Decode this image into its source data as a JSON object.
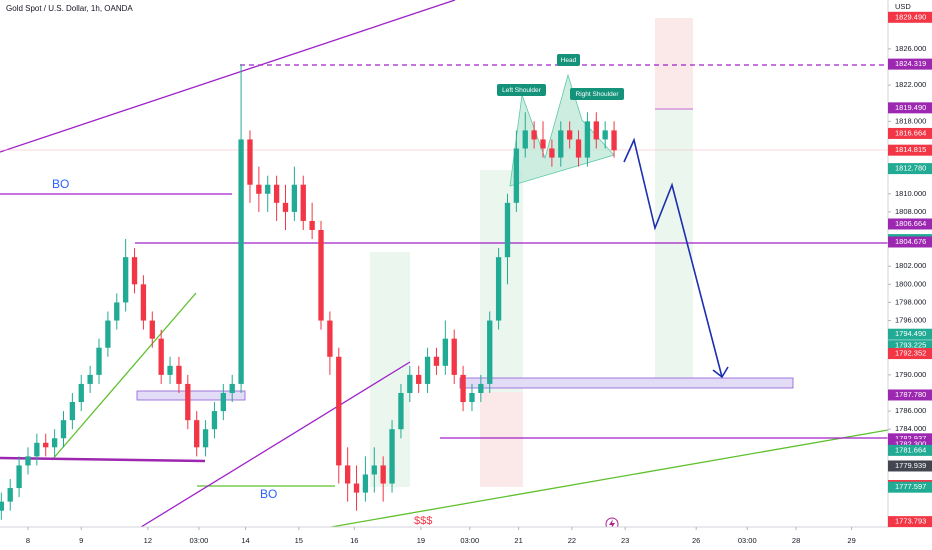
{
  "chart_data": {
    "type": "candlestick",
    "title": "Gold Spot / U.S. Dollar, 1h, OANDA",
    "currency": "USD",
    "up_color": "#22ab94",
    "down_color": "#f23645",
    "xlim": [
      -12.6,
      387.4
    ],
    "ylim": [
      1773.2,
      1831.4
    ],
    "xticks": [
      {
        "value": 0,
        "label": "8"
      },
      {
        "value": 24,
        "label": "9"
      },
      {
        "value": 54,
        "label": "12"
      },
      {
        "value": 77,
        "label": "03:00"
      },
      {
        "value": 98,
        "label": "14"
      },
      {
        "value": 122,
        "label": "15"
      },
      {
        "value": 147,
        "label": "16"
      },
      {
        "value": 177,
        "label": "19"
      },
      {
        "value": 199,
        "label": "03:00"
      },
      {
        "value": 221,
        "label": "21"
      },
      {
        "value": 245,
        "label": "22"
      },
      {
        "value": 269,
        "label": "23"
      },
      {
        "value": 301,
        "label": "26"
      },
      {
        "value": 324,
        "label": "03:00"
      },
      {
        "value": 346,
        "label": "28"
      },
      {
        "value": 371,
        "label": "29"
      }
    ],
    "yticks": [
      {
        "value": 1826,
        "label": "1826.000"
      },
      {
        "value": 1822,
        "label": "1822.000"
      },
      {
        "value": 1818,
        "label": "1818.000"
      },
      {
        "value": 1810,
        "label": "1810.000"
      },
      {
        "value": 1808,
        "label": "1808.000"
      },
      {
        "value": 1802,
        "label": "1802.000"
      },
      {
        "value": 1800,
        "label": "1800.000"
      },
      {
        "value": 1798,
        "label": "1798.000"
      },
      {
        "value": 1796,
        "label": "1796.000"
      },
      {
        "value": 1790,
        "label": "1790.000"
      },
      {
        "value": 1786,
        "label": "1786.000"
      },
      {
        "value": 1784,
        "label": "1784.000"
      }
    ],
    "x": [
      -12,
      -8,
      -4,
      0,
      4,
      8,
      12,
      16,
      20,
      24,
      28,
      32,
      36,
      40,
      44,
      48,
      52,
      56,
      60,
      64,
      68,
      72,
      76,
      80,
      84,
      88,
      92,
      96,
      100,
      104,
      108,
      112,
      116,
      120,
      124,
      128,
      132,
      136,
      140,
      144,
      148,
      152,
      156,
      160,
      164,
      168,
      172,
      176,
      180,
      184,
      188,
      192,
      196,
      200,
      204,
      208,
      212,
      216,
      220,
      224,
      228,
      232,
      236,
      240,
      244,
      248,
      252,
      256,
      260,
      264
    ],
    "open": [
      1775,
      1776,
      1777.5,
      1780,
      1781,
      1782.5,
      1782,
      1783,
      1785,
      1787,
      1789,
      1790,
      1793,
      1796,
      1798,
      1803,
      1800,
      1796,
      1794,
      1790,
      1791,
      1789,
      1785,
      1782,
      1784,
      1786,
      1788,
      1789,
      1816,
      1811,
      1810,
      1811,
      1809,
      1808,
      1811,
      1807,
      1806,
      1796,
      1792,
      1780,
      1778,
      1777,
      1779,
      1780,
      1778,
      1784,
      1788,
      1790,
      1789,
      1792,
      1791,
      1794,
      1790,
      1787,
      1788,
      1789,
      1796,
      1803,
      1809,
      1815,
      1817,
      1816,
      1815,
      1814,
      1817,
      1816,
      1814,
      1818,
      1816,
      1817
    ],
    "high": [
      1777,
      1778.5,
      1781,
      1782,
      1783.5,
      1783.5,
      1784,
      1786,
      1788,
      1790,
      1791,
      1794,
      1797,
      1799,
      1805,
      1804,
      1801,
      1797,
      1795,
      1792,
      1792,
      1790,
      1786,
      1785,
      1787,
      1789,
      1790,
      1824.319,
      1817,
      1813,
      1812,
      1812,
      1811,
      1813,
      1812,
      1809,
      1807,
      1797,
      1793,
      1782,
      1780,
      1781,
      1782,
      1781,
      1785,
      1789,
      1791,
      1791,
      1793,
      1793,
      1796,
      1795,
      1791,
      1789,
      1790,
      1797,
      1804,
      1810,
      1817,
      1819,
      1818,
      1818,
      1816,
      1818,
      1818,
      1817,
      1819,
      1819,
      1818,
      1818
    ],
    "low": [
      1774,
      1775,
      1776.5,
      1779,
      1780,
      1781,
      1781,
      1782,
      1784,
      1786,
      1788,
      1789,
      1792,
      1795,
      1797,
      1799,
      1795,
      1793,
      1789,
      1789,
      1788,
      1784,
      1781,
      1781,
      1783,
      1785,
      1787,
      1788,
      1809,
      1808,
      1808,
      1807,
      1806,
      1807,
      1806,
      1805,
      1795,
      1790,
      1778,
      1776,
      1775,
      1776,
      1777,
      1776,
      1777,
      1783,
      1787,
      1788,
      1788,
      1790,
      1790,
      1789,
      1786,
      1786,
      1787,
      1788,
      1795,
      1800,
      1808,
      1814,
      1815,
      1814,
      1813,
      1813,
      1815,
      1813,
      1813,
      1815,
      1815,
      1814
    ],
    "close": [
      1776,
      1777.5,
      1780,
      1781,
      1782.5,
      1782,
      1783,
      1785,
      1787,
      1789,
      1790,
      1793,
      1796,
      1798,
      1803,
      1800,
      1796,
      1794,
      1790,
      1791,
      1789,
      1785,
      1782,
      1784,
      1786,
      1788,
      1789,
      1816,
      1811,
      1810,
      1811,
      1809,
      1808,
      1811,
      1807,
      1806,
      1796,
      1792,
      1780,
      1778,
      1777,
      1779,
      1780,
      1778,
      1784,
      1788,
      1790,
      1789,
      1792,
      1791,
      1794,
      1790,
      1787,
      1788,
      1789,
      1796,
      1803,
      1809,
      1815,
      1817,
      1816,
      1815,
      1814,
      1817,
      1816,
      1814,
      1818,
      1816,
      1817,
      1814.8
    ],
    "price_tags": [
      {
        "value": 1829.49,
        "label": "1829.490",
        "color": "#f23645"
      },
      {
        "value": 1824.319,
        "label": "1824.319",
        "color": "#9c27b0"
      },
      {
        "value": 1819.49,
        "label": "1819.490",
        "color": "#9c27b0"
      },
      {
        "value": 1816.664,
        "label": "1816.664",
        "color": "#f23645"
      },
      {
        "value": 1814.815,
        "label": "1814.815",
        "color": "#f23645"
      },
      {
        "value": 1812.78,
        "label": "1812.780",
        "color": "#22ab94"
      },
      {
        "value": 1806.664,
        "label": "1806.664",
        "color": "#9c27b0"
      },
      {
        "value": 1804.939,
        "label": "1804.939",
        "color": "#22ab94"
      },
      {
        "value": 1804.676,
        "label": "1804.676",
        "color": "#9c27b0"
      },
      {
        "value": 1794.49,
        "label": "1794.490",
        "color": "#22ab94"
      },
      {
        "value": 1793.225,
        "label": "1793.225",
        "color": "#22ab94"
      },
      {
        "value": 1792.352,
        "label": "1792.352",
        "color": "#f23645"
      },
      {
        "value": 1787.78,
        "label": "1787.780",
        "color": "#9c27b0"
      },
      {
        "value": 1782.937,
        "label": "1782.937",
        "color": "#9c27b0"
      },
      {
        "value": 1782.3,
        "label": "1782.300",
        "color": "#9c27b0"
      },
      {
        "value": 1781.664,
        "label": "1781.664",
        "color": "#22ab94"
      },
      {
        "value": 1779.939,
        "label": "1779.939",
        "color": "#434651"
      },
      {
        "value": 1777.78,
        "label": "1777.780",
        "color": "#f23645"
      },
      {
        "value": 1777.597,
        "label": "1777.597",
        "color": "#22ab94"
      },
      {
        "value": 1773.793,
        "label": "1773.793",
        "color": "#f23645"
      }
    ],
    "countdown": "06:31",
    "annotations": [
      "BO",
      "BO",
      "$$$",
      "Head",
      "Left Shoulder",
      "Right Shoulder"
    ]
  }
}
